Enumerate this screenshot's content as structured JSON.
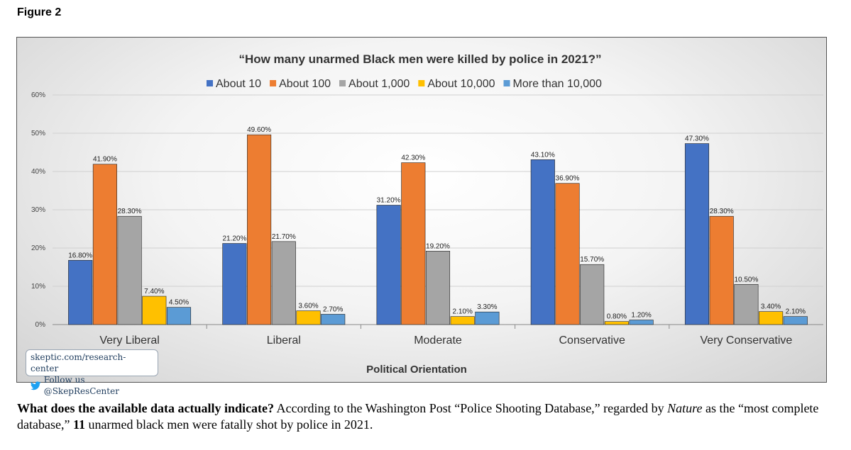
{
  "figure_label": "Figure 2",
  "credit": {
    "url": "skeptic.com/research-center",
    "follow": "Follow us @SkepResCenter",
    "icon": "twitter-bird-icon",
    "icon_color": "#1da1f2"
  },
  "caption": {
    "lead": "What does the available data actually indicate?",
    "part1": " According to the Washington Post “Police Shooting Database,” regarded by ",
    "emph": "Nature",
    "part2": " as the “most complete database,” ",
    "number": "11",
    "part3": " unarmed black men were fatally shot by police in 2021."
  },
  "chart_data": {
    "type": "bar",
    "title": "“How many unarmed Black men were killed by police in 2021?”",
    "xlabel": "Political Orientation",
    "ylabel": "",
    "ylim": [
      0,
      60
    ],
    "yticks": [
      "0%",
      "10%",
      "20%",
      "30%",
      "40%",
      "50%",
      "60%"
    ],
    "grid": true,
    "legend_position": "top",
    "categories": [
      "Very Liberal",
      "Liberal",
      "Moderate",
      "Conservative",
      "Very Conservative"
    ],
    "series": [
      {
        "name": "About 10",
        "color": "#4472c4",
        "values": [
          16.8,
          21.2,
          31.2,
          43.1,
          47.3
        ],
        "labels": [
          "16.80%",
          "21.20%",
          "31.20%",
          "43.10%",
          "47.30%"
        ]
      },
      {
        "name": "About 100",
        "color": "#ed7d31",
        "values": [
          41.9,
          49.6,
          42.3,
          36.9,
          28.3
        ],
        "labels": [
          "41.90%",
          "49.60%",
          "42.30%",
          "36.90%",
          "28.30%"
        ]
      },
      {
        "name": "About 1,000",
        "color": "#a5a5a5",
        "values": [
          28.3,
          21.7,
          19.2,
          15.7,
          10.5
        ],
        "labels": [
          "28.30%",
          "21.70%",
          "19.20%",
          "15.70%",
          "10.50%"
        ]
      },
      {
        "name": "About 10,000",
        "color": "#ffc000",
        "values": [
          7.4,
          3.6,
          2.1,
          0.8,
          3.4
        ],
        "labels": [
          "7.40%",
          "3.60%",
          "2.10%",
          "0.80%",
          "3.40%"
        ]
      },
      {
        "name": "More than 10,000",
        "color": "#5b9bd5",
        "values": [
          4.5,
          2.7,
          3.3,
          1.2,
          2.1
        ],
        "labels": [
          "4.50%",
          "2.70%",
          "3.30%",
          "1.20%",
          "2.10%"
        ]
      }
    ]
  }
}
